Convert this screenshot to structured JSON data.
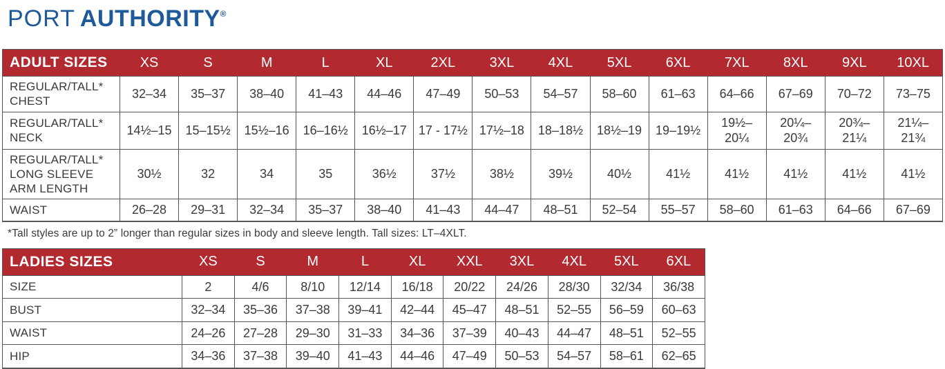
{
  "logo": {
    "port": "PORT",
    "authority": "AUTHORITY",
    "registered": "®"
  },
  "colors": {
    "brand_blue": "#1e5a99",
    "header_red": "#b2292f",
    "border_gray": "#54565a",
    "text_dark": "#3a3a3c"
  },
  "adult_table": {
    "title": "ADULT SIZES",
    "columns": [
      "XS",
      "S",
      "M",
      "L",
      "XL",
      "2XL",
      "3XL",
      "4XL",
      "5XL",
      "6XL",
      "7XL",
      "8XL",
      "9XL",
      "10XL"
    ],
    "rows": [
      {
        "label": "REGULAR/TALL*\nCHEST",
        "values": [
          "32–34",
          "35–37",
          "38–40",
          "41–43",
          "44–46",
          "47–49",
          "50–53",
          "54–57",
          "58–60",
          "61–63",
          "64–66",
          "67–69",
          "70–72",
          "73–75"
        ]
      },
      {
        "label": "REGULAR/TALL*\nNECK",
        "values": [
          "14½–15",
          "15–15½",
          "15½–16",
          "16–16½",
          "16½–17",
          "17 - 17½",
          "17½–18",
          "18–18½",
          "18½–19",
          "19–19½",
          "19½–\n20¼",
          "20¼–\n20¾",
          "20¾–\n21¼",
          "21¼–\n21¾"
        ]
      },
      {
        "label": "REGULAR/TALL*\nLONG SLEEVE\nARM LENGTH",
        "values": [
          "30½",
          "32",
          "34",
          "35",
          "36½",
          "37½",
          "38½",
          "39½",
          "40½",
          "41½",
          "41½",
          "41½",
          "41½",
          "41½"
        ]
      },
      {
        "label": "WAIST",
        "values": [
          "26–28",
          "29–31",
          "32–34",
          "35–37",
          "38–40",
          "41–43",
          "44–47",
          "48–51",
          "52–54",
          "55–57",
          "58–60",
          "61–63",
          "64–66",
          "67–69"
        ]
      }
    ]
  },
  "footnote": "*Tall styles are up to 2” longer than regular sizes in body and sleeve length. Tall sizes: LT–4XLT.",
  "ladies_table": {
    "title": "LADIES SIZES",
    "columns": [
      "XS",
      "S",
      "M",
      "L",
      "XL",
      "XXL",
      "3XL",
      "4XL",
      "5XL",
      "6XL"
    ],
    "rows": [
      {
        "label": "SIZE",
        "values": [
          "2",
          "4/6",
          "8/10",
          "12/14",
          "16/18",
          "20/22",
          "24/26",
          "28/30",
          "32/34",
          "36/38"
        ]
      },
      {
        "label": "BUST",
        "values": [
          "32–34",
          "35–36",
          "37–38",
          "39–41",
          "42–44",
          "45–47",
          "48–51",
          "52–55",
          "56–59",
          "60–63"
        ]
      },
      {
        "label": "WAIST",
        "values": [
          "24–26",
          "27–28",
          "29–30",
          "31–33",
          "34–36",
          "37–39",
          "40–43",
          "44–47",
          "48–51",
          "52–55"
        ]
      },
      {
        "label": "HIP",
        "values": [
          "34–36",
          "37–38",
          "39–40",
          "41–43",
          "44–46",
          "47–49",
          "50–53",
          "54–57",
          "58–61",
          "62–65"
        ]
      }
    ]
  }
}
